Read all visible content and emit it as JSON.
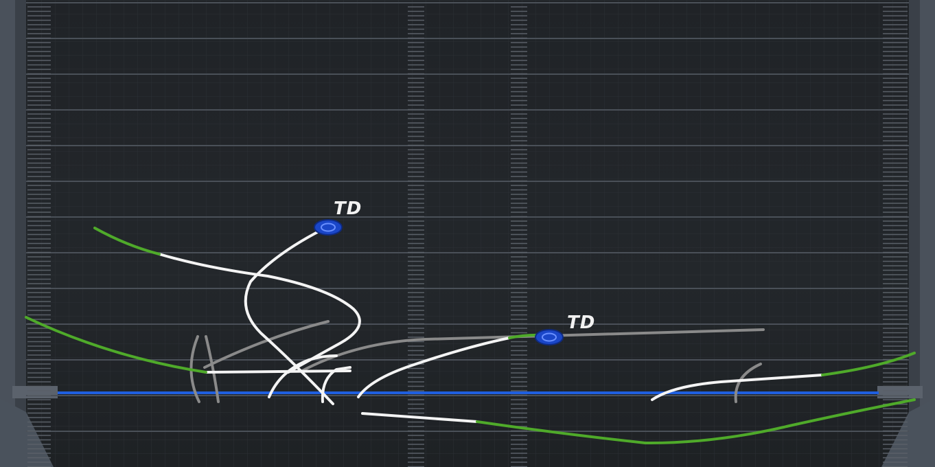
{
  "screen": "play-art-route-diagram",
  "colors": {
    "field_dark": "#1d2024",
    "line_of_scrimmage": "#1f5fe0",
    "route_white": "#f4f4f4",
    "route_green": "#4faa2a",
    "route_gray": "#8a8a8a",
    "td_marker": "#1a46c8"
  },
  "markers": [
    {
      "label": "TD",
      "icon": "td-target-icon"
    },
    {
      "label": "TD",
      "icon": "td-target-icon"
    }
  ]
}
